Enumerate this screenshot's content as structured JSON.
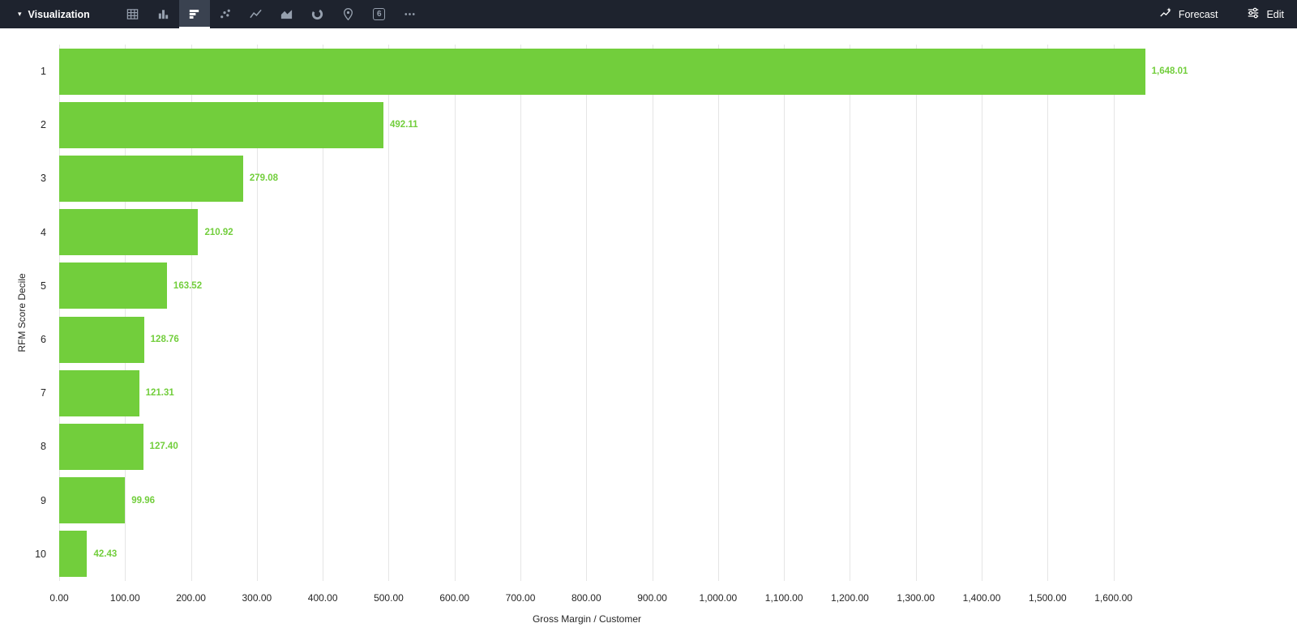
{
  "toolbar": {
    "title": "Visualization",
    "icons": [
      {
        "name": "table-icon",
        "selected": false
      },
      {
        "name": "column-chart-icon",
        "selected": false
      },
      {
        "name": "bar-chart-icon",
        "selected": true
      },
      {
        "name": "scatter-chart-icon",
        "selected": false
      },
      {
        "name": "line-chart-icon",
        "selected": false
      },
      {
        "name": "area-chart-icon",
        "selected": false
      },
      {
        "name": "donut-chart-icon",
        "selected": false
      },
      {
        "name": "map-icon",
        "selected": false
      },
      {
        "name": "single-value-icon",
        "selected": false,
        "glyph": "6"
      },
      {
        "name": "more-icon",
        "selected": false
      }
    ],
    "forecast_label": "Forecast",
    "edit_label": "Edit"
  },
  "chart_data": {
    "type": "bar",
    "orientation": "horizontal",
    "title": "",
    "categories": [
      "1",
      "2",
      "3",
      "4",
      "5",
      "6",
      "7",
      "8",
      "9",
      "10"
    ],
    "values": [
      1648.01,
      492.11,
      279.08,
      210.92,
      163.52,
      128.76,
      121.31,
      127.4,
      99.96,
      42.43
    ],
    "value_labels": [
      "1,648.01",
      "492.11",
      "279.08",
      "210.92",
      "163.52",
      "128.76",
      "121.31",
      "127.40",
      "99.96",
      "42.43"
    ],
    "xlabel": "Gross Margin / Customer",
    "ylabel": "RFM Score Decile",
    "xlim": [
      0,
      1600
    ],
    "x_tick_values": [
      0,
      100,
      200,
      300,
      400,
      500,
      600,
      700,
      800,
      900,
      1000,
      1100,
      1200,
      1300,
      1400,
      1500,
      1600
    ],
    "x_ticks": [
      "0.00",
      "100.00",
      "200.00",
      "300.00",
      "400.00",
      "500.00",
      "600.00",
      "700.00",
      "800.00",
      "900.00",
      "1,000.00",
      "1,100.00",
      "1,200.00",
      "1,300.00",
      "1,400.00",
      "1,500.00",
      "1,600.00"
    ],
    "grid": true,
    "legend": false,
    "bar_color": "#72CE3C",
    "value_label_color": "#72CE3C"
  },
  "colors": {
    "toolbar_bg": "#1E232E",
    "icon_selected_bg": "#3A4250",
    "accent_green": "#72CE3C"
  }
}
